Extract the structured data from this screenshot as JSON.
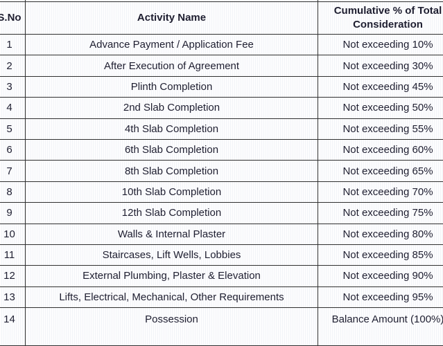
{
  "colors": {
    "text": "#1e1e30",
    "border": "#2f2f2f",
    "background": "#fdfdfe"
  },
  "table": {
    "columns": [
      "S.No",
      "Activity Name",
      "Cumulative % of Total Consideration"
    ],
    "rows": [
      {
        "s_no": "1",
        "activity": "Advance Payment / Application Fee",
        "cumulative": "Not exceeding 10%"
      },
      {
        "s_no": "2",
        "activity": "After Execution of Agreement",
        "cumulative": "Not exceeding 30%"
      },
      {
        "s_no": "3",
        "activity": "Plinth Completion",
        "cumulative": "Not exceeding 45%"
      },
      {
        "s_no": "4",
        "activity": "2nd Slab Completion",
        "cumulative": "Not exceeding 50%"
      },
      {
        "s_no": "5",
        "activity": "4th Slab Completion",
        "cumulative": "Not exceeding 55%"
      },
      {
        "s_no": "6",
        "activity": "6th Slab Completion",
        "cumulative": "Not exceeding 60%"
      },
      {
        "s_no": "7",
        "activity": "8th Slab Completion",
        "cumulative": "Not exceeding 65%"
      },
      {
        "s_no": "8",
        "activity": "10th Slab Completion",
        "cumulative": "Not exceeding 70%"
      },
      {
        "s_no": "9",
        "activity": "12th Slab Completion",
        "cumulative": "Not exceeding 75%"
      },
      {
        "s_no": "10",
        "activity": "Walls & Internal Plaster",
        "cumulative": "Not exceeding 80%"
      },
      {
        "s_no": "11",
        "activity": "Staircases, Lift Wells, Lobbies",
        "cumulative": "Not exceeding 85%"
      },
      {
        "s_no": "12",
        "activity": "External Plumbing, Plaster & Elevation",
        "cumulative": "Not exceeding 90%"
      },
      {
        "s_no": "13",
        "activity": "Lifts, Electrical, Mechanical, Other Requirements",
        "cumulative": "Not exceeding 95%"
      },
      {
        "s_no": "14",
        "activity": "Possession",
        "cumulative": "Balance Amount (100%)"
      }
    ]
  }
}
